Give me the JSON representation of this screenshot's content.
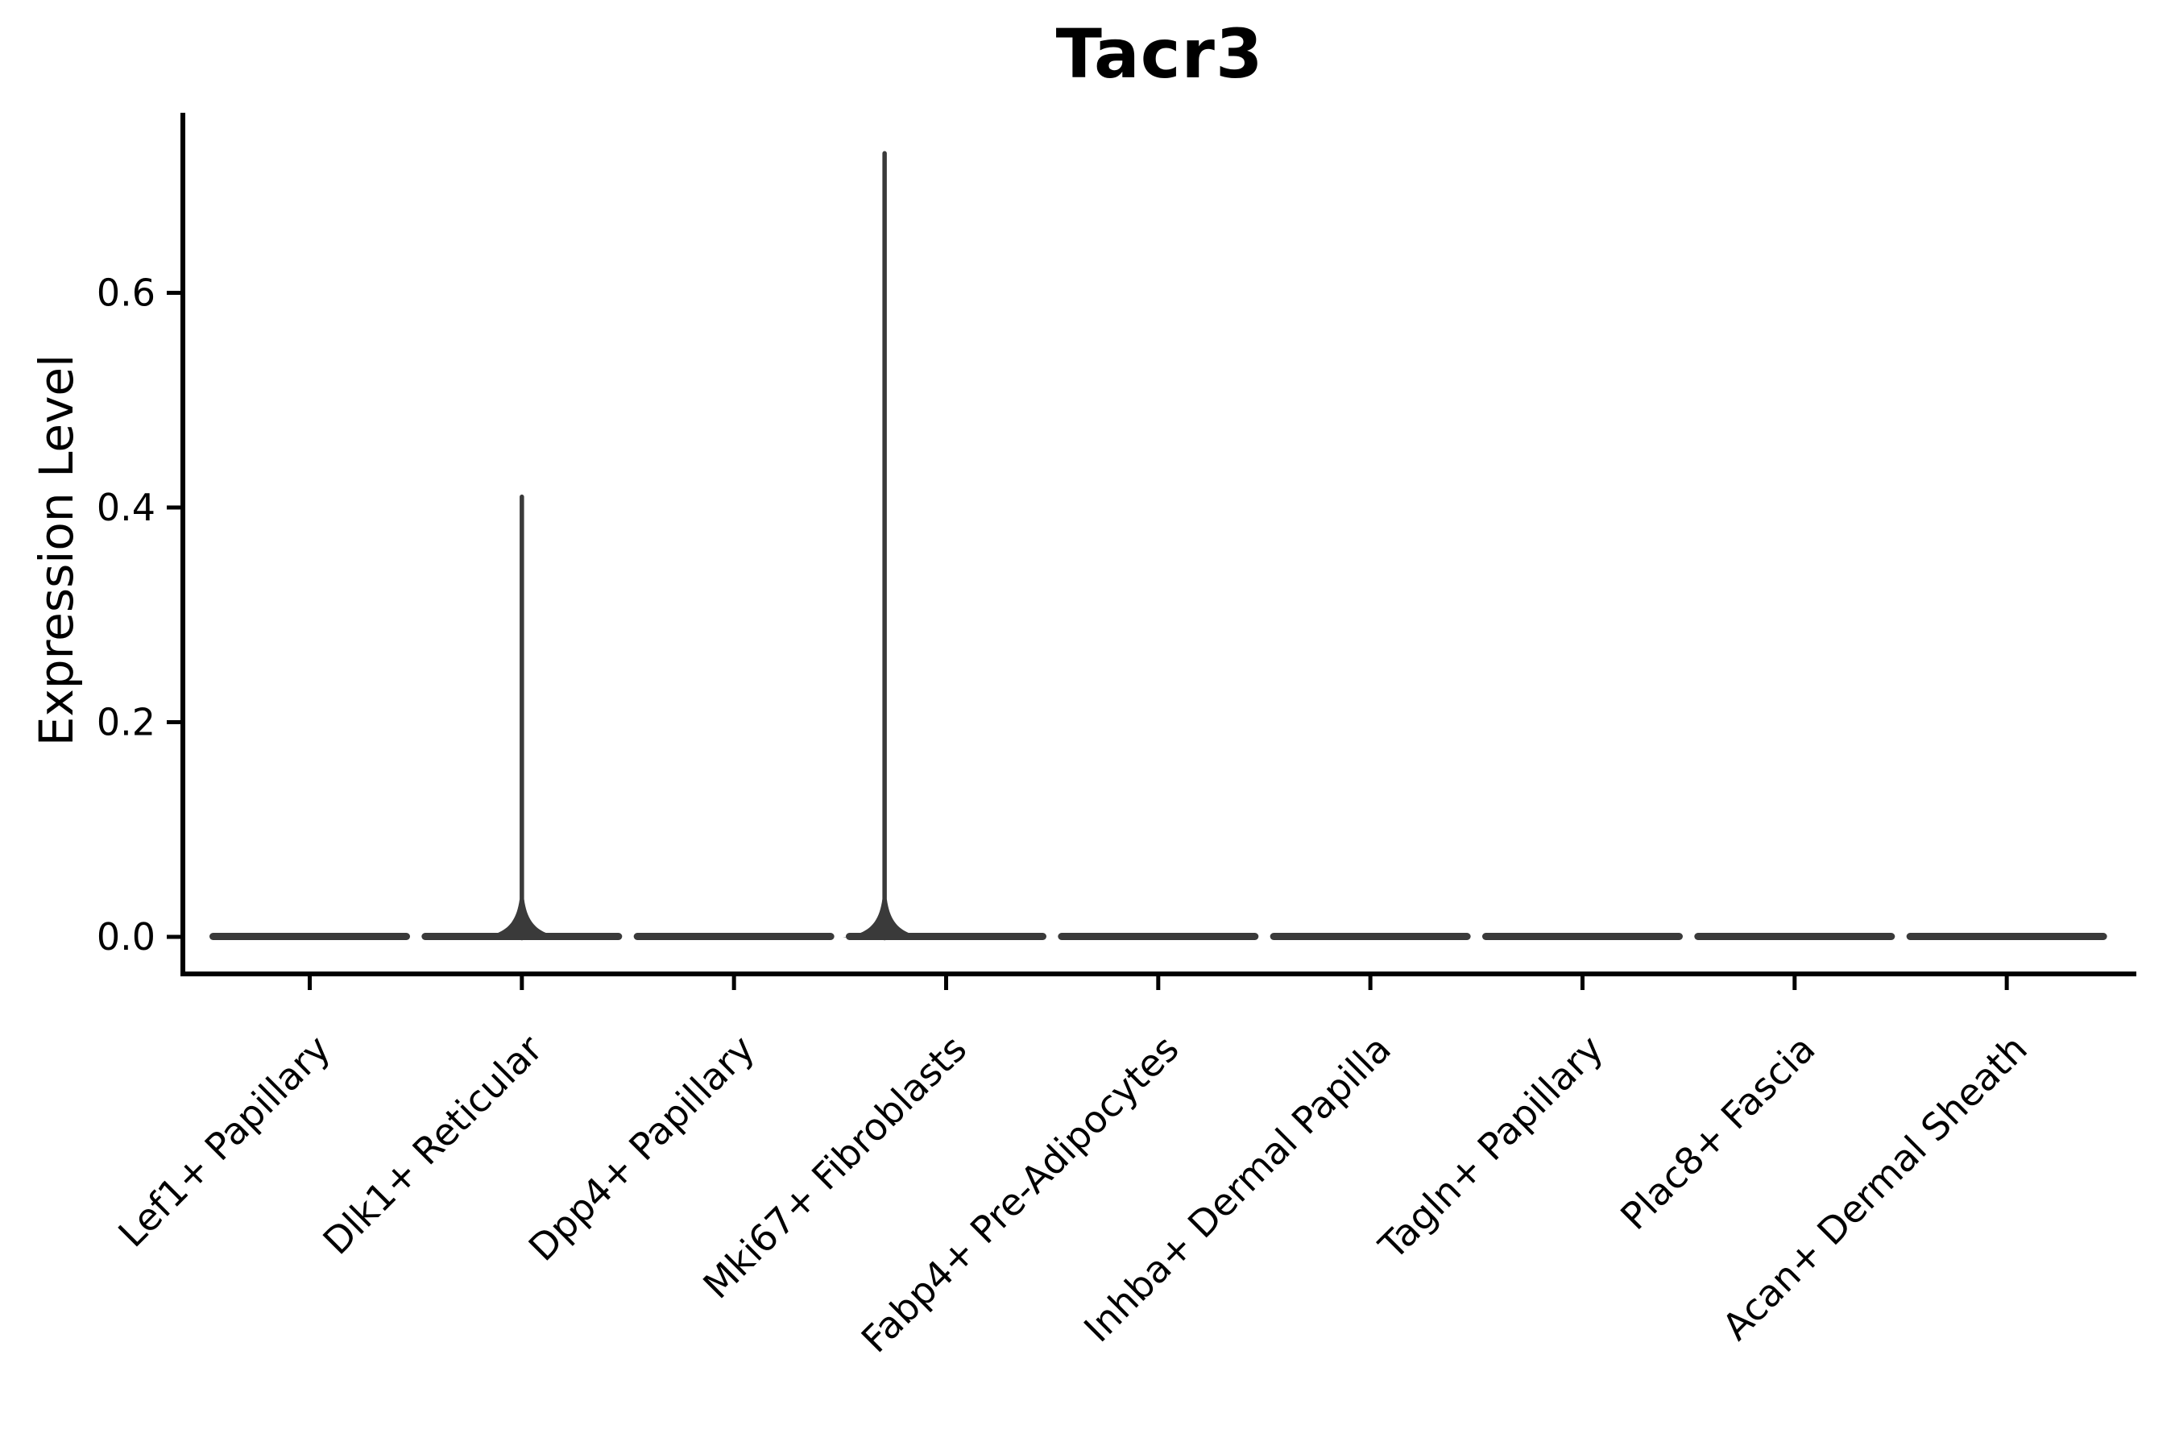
{
  "figure": {
    "background_color": "#ffffff",
    "axis_color": "#000000",
    "violin_color": "#3a3a3a",
    "text_color": "#000000"
  },
  "chart_data": {
    "type": "violin",
    "title": "Tacr3",
    "xlabel": "",
    "ylabel": "Expression Level",
    "grid": false,
    "legend": "none",
    "ylim": [
      -0.035,
      0.768
    ],
    "yticks": [
      {
        "value": 0.0,
        "label": "0.0"
      },
      {
        "value": 0.2,
        "label": "0.2"
      },
      {
        "value": 0.4,
        "label": "0.4"
      },
      {
        "value": 0.6,
        "label": "0.6"
      }
    ],
    "categories": [
      "Lef1+ Papillary",
      "Dlk1+ Reticular",
      "Dpp4+ Papillary",
      "Mki67+ Fibroblasts",
      "Fabp4+ Pre-Adipocytes",
      "Inhba+ Dermal Papilla",
      "Tagln+ Papillary",
      "Plac8+ Fascia",
      "Acan+ Dermal Sheath"
    ],
    "violins": [
      {
        "category": "Lef1+ Papillary",
        "baseline_value": 0.0,
        "max_value": 0.0,
        "has_spike": false,
        "spike_offset_frac": 0.0
      },
      {
        "category": "Dlk1+ Reticular",
        "baseline_value": 0.0,
        "max_value": 0.41,
        "has_spike": true,
        "spike_offset_frac": 0.0
      },
      {
        "category": "Dpp4+ Papillary",
        "baseline_value": 0.0,
        "max_value": 0.0,
        "has_spike": false,
        "spike_offset_frac": 0.0
      },
      {
        "category": "Mki67+ Fibroblasts",
        "baseline_value": 0.0,
        "max_value": 0.73,
        "has_spike": true,
        "spike_offset_frac": -0.29
      },
      {
        "category": "Fabp4+ Pre-Adipocytes",
        "baseline_value": 0.0,
        "max_value": 0.0,
        "has_spike": false,
        "spike_offset_frac": 0.0
      },
      {
        "category": "Inhba+ Dermal Papilla",
        "baseline_value": 0.0,
        "max_value": 0.0,
        "has_spike": false,
        "spike_offset_frac": 0.0
      },
      {
        "category": "Tagln+ Papillary",
        "baseline_value": 0.0,
        "max_value": 0.0,
        "has_spike": false,
        "spike_offset_frac": 0.0
      },
      {
        "category": "Plac8+ Fascia",
        "baseline_value": 0.0,
        "max_value": 0.0,
        "has_spike": false,
        "spike_offset_frac": 0.0
      },
      {
        "category": "Acan+ Dermal Sheath",
        "baseline_value": 0.0,
        "max_value": 0.0,
        "has_spike": false,
        "spike_offset_frac": 0.0
      }
    ]
  }
}
